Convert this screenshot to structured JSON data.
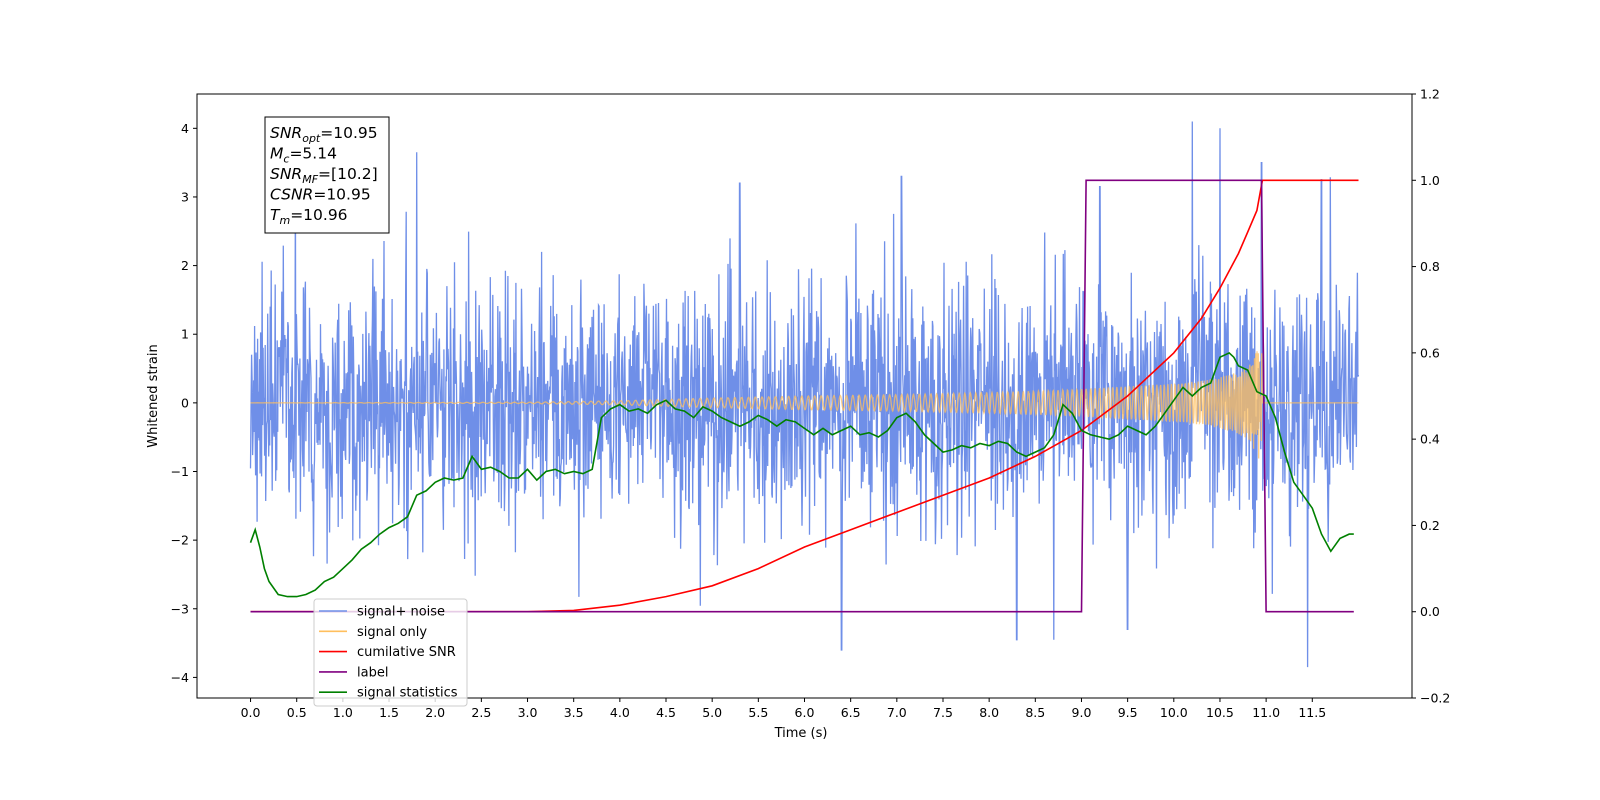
{
  "chart_data": {
    "type": "line",
    "xlabel": "Time (s)",
    "ylabel": "Whitened strain",
    "xlim": [
      -0.58,
      12.58
    ],
    "ylim_left": [
      -4.3,
      4.5
    ],
    "ylim_right": [
      -0.2,
      1.2
    ],
    "x_ticks": [
      "0.0",
      "0.5",
      "1.0",
      "1.5",
      "2.0",
      "2.5",
      "3.0",
      "3.5",
      "4.0",
      "4.5",
      "5.0",
      "5.5",
      "6.0",
      "6.5",
      "7.0",
      "7.5",
      "8.0",
      "8.5",
      "9.0",
      "9.5",
      "10.0",
      "10.5",
      "11.0",
      "11.5"
    ],
    "y_ticks_left": [
      "4",
      "3",
      "2",
      "1",
      "0",
      "−1",
      "−2",
      "−3",
      "−4"
    ],
    "y_ticks_right": [
      "1.2",
      "1.0",
      "0.8",
      "0.6",
      "0.4",
      "0.2",
      "0.0",
      "−0.2"
    ],
    "info_box": {
      "lines": [
        {
          "base": "SNR",
          "sub": "opt",
          "value": "=10.95"
        },
        {
          "base": "M",
          "sub": "c",
          "value": "=5.14"
        },
        {
          "base": "SNR",
          "sub": "MF",
          "value": "=[10.2]"
        },
        {
          "base": "CSNR",
          "sub": "",
          "value": "=10.95"
        },
        {
          "base": "T",
          "sub": "m",
          "value": "=10.96"
        }
      ]
    },
    "legend": {
      "placement": "lower-left",
      "entries": [
        {
          "label": "signal+ noise",
          "color": "#6f8fe8"
        },
        {
          "label": "signal only",
          "color": "#ffbf5e"
        },
        {
          "label": "cumilative SNR",
          "color": "#ff0000"
        },
        {
          "label": "label",
          "color": "#800080"
        },
        {
          "label": "signal statistics",
          "color": "#008000"
        }
      ]
    },
    "series": [
      {
        "name": "signal+ noise",
        "axis": "left",
        "color": "#6f8fe8",
        "x_range": [
          0.0,
          12.0
        ],
        "noise_sigma": 0.9,
        "min": -3.85,
        "max": 4.1,
        "peaks": [
          [
            1.8,
            3.65
          ],
          [
            5.3,
            3.2
          ],
          [
            6.4,
            -3.6
          ],
          [
            7.05,
            3.3
          ],
          [
            8.3,
            -3.45
          ],
          [
            8.7,
            -3.45
          ],
          [
            9.2,
            3.15
          ],
          [
            9.5,
            -3.3
          ],
          [
            10.2,
            4.1
          ],
          [
            10.5,
            4.0
          ],
          [
            10.95,
            3.5
          ],
          [
            11.45,
            -3.85
          ],
          [
            11.6,
            3.25
          ]
        ]
      },
      {
        "name": "signal only",
        "axis": "left",
        "color": "#ffbf5e",
        "envelope": {
          "x": [
            0.0,
            3.0,
            4.0,
            5.0,
            6.0,
            7.0,
            8.0,
            8.5,
            9.0,
            9.5,
            10.0,
            10.3,
            10.5,
            10.7,
            10.8,
            10.9,
            10.95,
            10.96,
            12.0
          ],
          "amp": [
            0.0,
            0.01,
            0.03,
            0.07,
            0.1,
            0.12,
            0.15,
            0.17,
            0.2,
            0.24,
            0.28,
            0.32,
            0.37,
            0.45,
            0.55,
            0.75,
            0.95,
            0.0,
            0.0
          ]
        }
      },
      {
        "name": "cumilative SNR",
        "axis": "right",
        "color": "#ff0000",
        "x": [
          0.0,
          3.0,
          3.5,
          4.0,
          4.5,
          5.0,
          5.5,
          6.0,
          6.5,
          7.0,
          7.5,
          8.0,
          8.5,
          9.0,
          9.5,
          10.0,
          10.3,
          10.5,
          10.7,
          10.8,
          10.9,
          10.96,
          11.0,
          12.0
        ],
        "y": [
          0.0,
          0.0,
          0.003,
          0.015,
          0.035,
          0.06,
          0.1,
          0.15,
          0.19,
          0.23,
          0.27,
          0.31,
          0.36,
          0.42,
          0.5,
          0.6,
          0.68,
          0.75,
          0.83,
          0.88,
          0.93,
          1.0,
          1.0,
          1.0
        ]
      },
      {
        "name": "label",
        "axis": "right",
        "color": "#800080",
        "x": [
          0.0,
          9.0,
          9.05,
          10.95,
          11.0,
          11.95
        ],
        "y": [
          0.0,
          0.0,
          1.0,
          1.0,
          0.0,
          0.0
        ]
      },
      {
        "name": "signal statistics",
        "axis": "right",
        "color": "#008000",
        "x": [
          0.0,
          0.05,
          0.1,
          0.15,
          0.2,
          0.3,
          0.4,
          0.5,
          0.6,
          0.7,
          0.8,
          0.9,
          1.0,
          1.1,
          1.2,
          1.3,
          1.4,
          1.5,
          1.6,
          1.7,
          1.8,
          1.9,
          2.0,
          2.1,
          2.2,
          2.3,
          2.4,
          2.5,
          2.6,
          2.7,
          2.8,
          2.9,
          3.0,
          3.1,
          3.2,
          3.3,
          3.4,
          3.5,
          3.6,
          3.7,
          3.8,
          3.9,
          4.0,
          4.1,
          4.2,
          4.3,
          4.4,
          4.5,
          4.6,
          4.7,
          4.8,
          4.9,
          5.0,
          5.1,
          5.2,
          5.3,
          5.4,
          5.5,
          5.6,
          5.7,
          5.8,
          5.9,
          6.0,
          6.1,
          6.2,
          6.3,
          6.4,
          6.5,
          6.6,
          6.7,
          6.8,
          6.9,
          7.0,
          7.1,
          7.2,
          7.3,
          7.4,
          7.5,
          7.6,
          7.7,
          7.8,
          7.9,
          8.0,
          8.1,
          8.2,
          8.3,
          8.4,
          8.5,
          8.6,
          8.7,
          8.8,
          8.9,
          9.0,
          9.1,
          9.2,
          9.3,
          9.4,
          9.5,
          9.6,
          9.7,
          9.8,
          9.9,
          10.0,
          10.1,
          10.2,
          10.3,
          10.4,
          10.5,
          10.6,
          10.65,
          10.7,
          10.8,
          10.9,
          11.0,
          11.1,
          11.2,
          11.3,
          11.4,
          11.5,
          11.6,
          11.7,
          11.8,
          11.9,
          11.95
        ],
        "y": [
          0.16,
          0.19,
          0.15,
          0.1,
          0.07,
          0.04,
          0.035,
          0.035,
          0.04,
          0.05,
          0.07,
          0.08,
          0.1,
          0.12,
          0.145,
          0.16,
          0.18,
          0.195,
          0.205,
          0.22,
          0.27,
          0.28,
          0.3,
          0.31,
          0.305,
          0.31,
          0.36,
          0.33,
          0.335,
          0.325,
          0.31,
          0.31,
          0.33,
          0.305,
          0.325,
          0.33,
          0.32,
          0.325,
          0.32,
          0.33,
          0.45,
          0.47,
          0.48,
          0.465,
          0.47,
          0.46,
          0.48,
          0.49,
          0.47,
          0.465,
          0.45,
          0.475,
          0.465,
          0.45,
          0.44,
          0.43,
          0.44,
          0.455,
          0.445,
          0.43,
          0.445,
          0.44,
          0.425,
          0.41,
          0.425,
          0.41,
          0.42,
          0.43,
          0.41,
          0.415,
          0.405,
          0.42,
          0.45,
          0.46,
          0.44,
          0.41,
          0.39,
          0.37,
          0.375,
          0.385,
          0.38,
          0.39,
          0.385,
          0.395,
          0.39,
          0.37,
          0.36,
          0.37,
          0.38,
          0.41,
          0.48,
          0.46,
          0.42,
          0.41,
          0.405,
          0.4,
          0.41,
          0.43,
          0.42,
          0.41,
          0.43,
          0.46,
          0.49,
          0.52,
          0.5,
          0.52,
          0.53,
          0.59,
          0.6,
          0.59,
          0.57,
          0.56,
          0.51,
          0.5,
          0.45,
          0.37,
          0.3,
          0.27,
          0.24,
          0.18,
          0.14,
          0.17,
          0.18,
          0.18
        ]
      }
    ]
  }
}
